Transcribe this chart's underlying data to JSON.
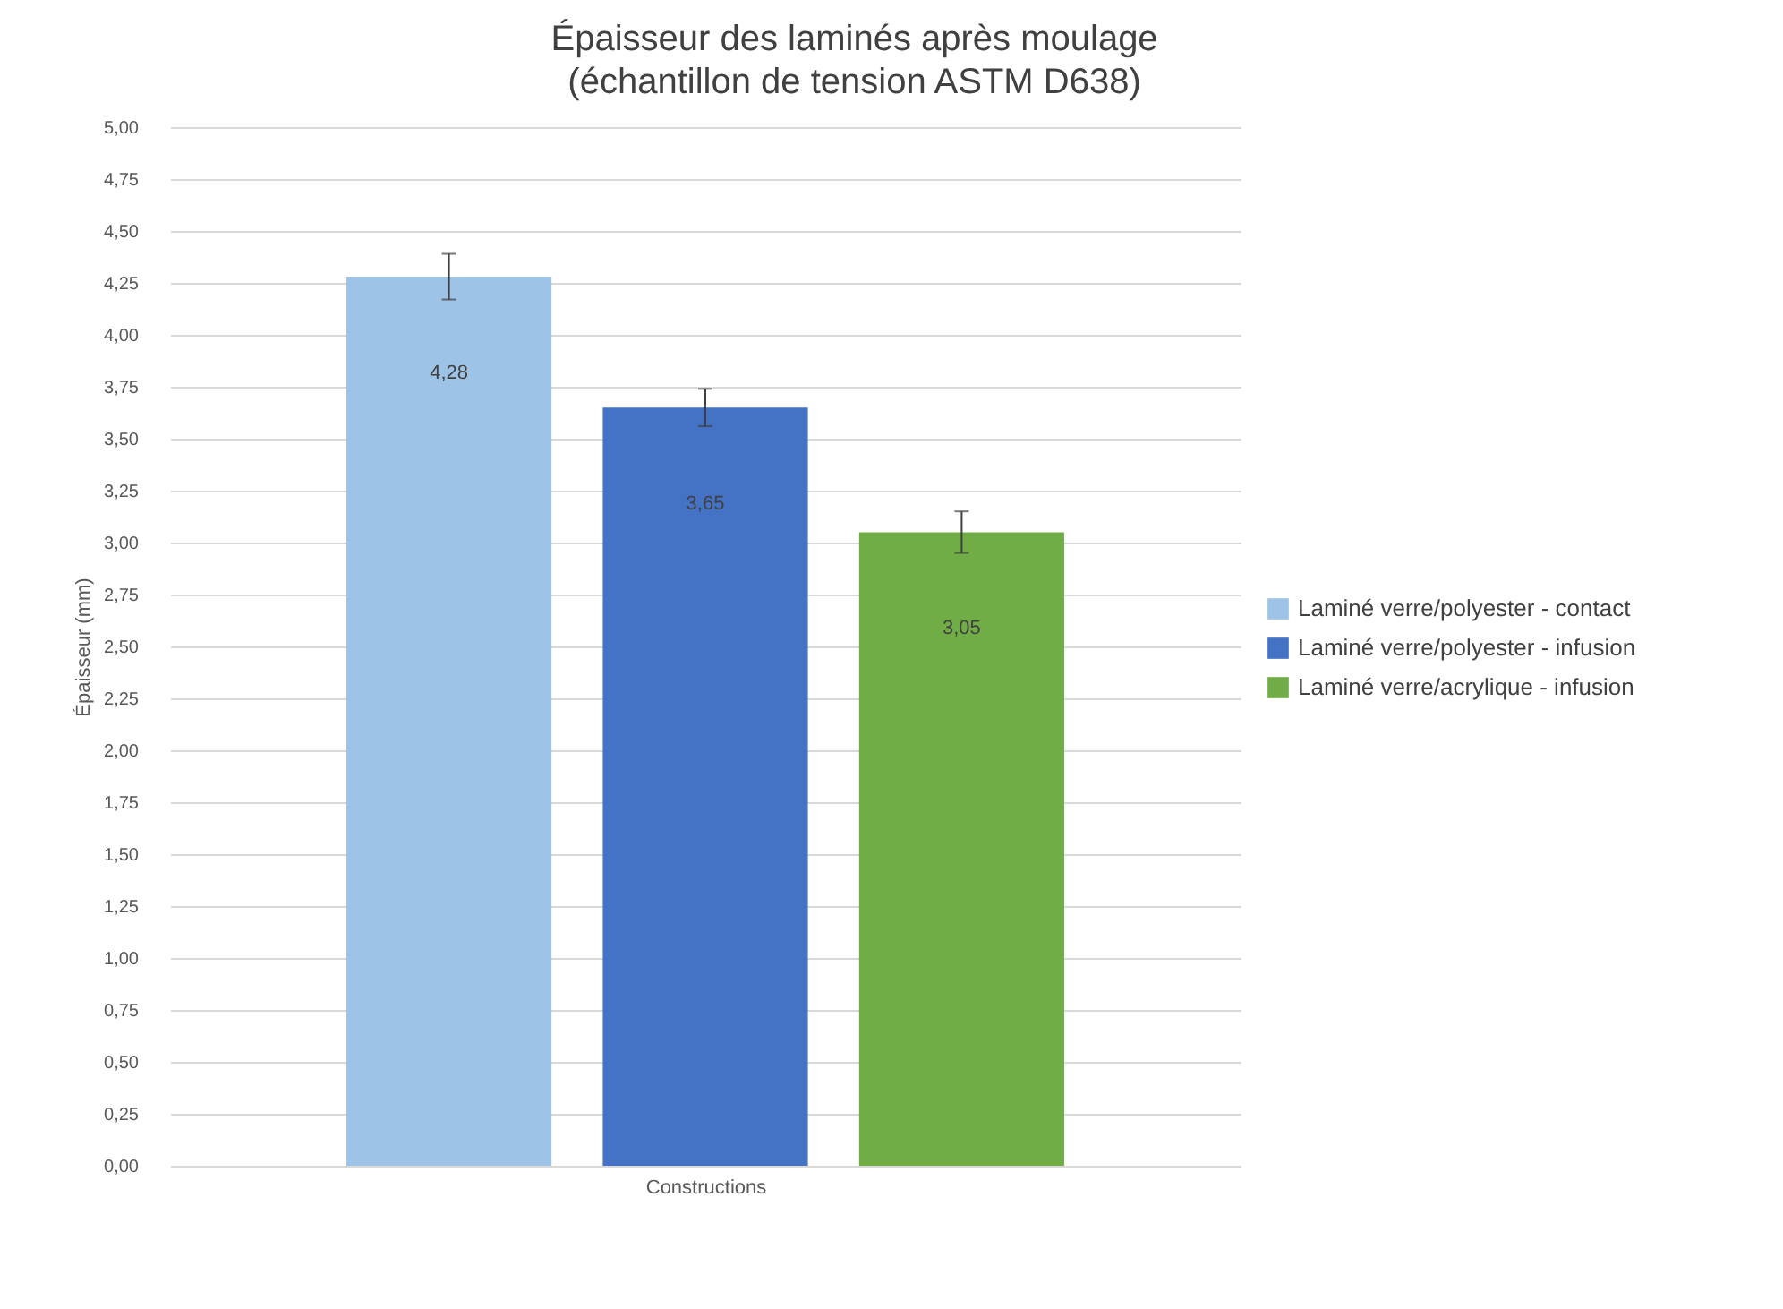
{
  "chart_data": {
    "type": "bar",
    "title": "Épaisseur des laminés après moulage",
    "subtitle": "(échantillon de tension ASTM D638)",
    "xlabel": "Constructions",
    "ylabel": "Épaisseur (mm)",
    "categories": [
      null
    ],
    "series": [
      {
        "name": "Laminé verre/polyester - contact",
        "color": "#9dc3e6",
        "values": [
          4.28
        ],
        "errors": [
          0.11
        ],
        "value_labels": [
          "4,28"
        ]
      },
      {
        "name": "Laminé verre/polyester - infusion",
        "color": "#4472c4",
        "values": [
          3.65
        ],
        "errors": [
          0.09
        ],
        "value_labels": [
          "3,65"
        ]
      },
      {
        "name": "Laminé verre/acrylique - infusion",
        "color": "#70ad47",
        "values": [
          3.05
        ],
        "errors": [
          0.1
        ],
        "value_labels": [
          "3,05"
        ]
      }
    ],
    "ylim": [
      0,
      5
    ],
    "yticks": [
      {
        "value": 0,
        "label": "0,00"
      },
      {
        "value": 0.25,
        "label": "0,25"
      },
      {
        "value": 0.5,
        "label": "0,50"
      },
      {
        "value": 0.75,
        "label": "0,75"
      },
      {
        "value": 1,
        "label": "1,00"
      },
      {
        "value": 1.25,
        "label": "1,25"
      },
      {
        "value": 1.5,
        "label": "1,50"
      },
      {
        "value": 1.75,
        "label": "1,75"
      },
      {
        "value": 2,
        "label": "2,00"
      },
      {
        "value": 2.25,
        "label": "2,25"
      },
      {
        "value": 2.5,
        "label": "2,50"
      },
      {
        "value": 2.75,
        "label": "2,75"
      },
      {
        "value": 3,
        "label": "3,00"
      },
      {
        "value": 3.25,
        "label": "3,25"
      },
      {
        "value": 3.5,
        "label": "3,50"
      },
      {
        "value": 3.75,
        "label": "3,75"
      },
      {
        "value": 4,
        "label": "4,00"
      },
      {
        "value": 4.25,
        "label": "4,25"
      },
      {
        "value": 4.5,
        "label": "4,50"
      },
      {
        "value": 4.75,
        "label": "4,75"
      },
      {
        "value": 5,
        "label": "5,00"
      }
    ],
    "grid": "y",
    "legend": "right"
  }
}
